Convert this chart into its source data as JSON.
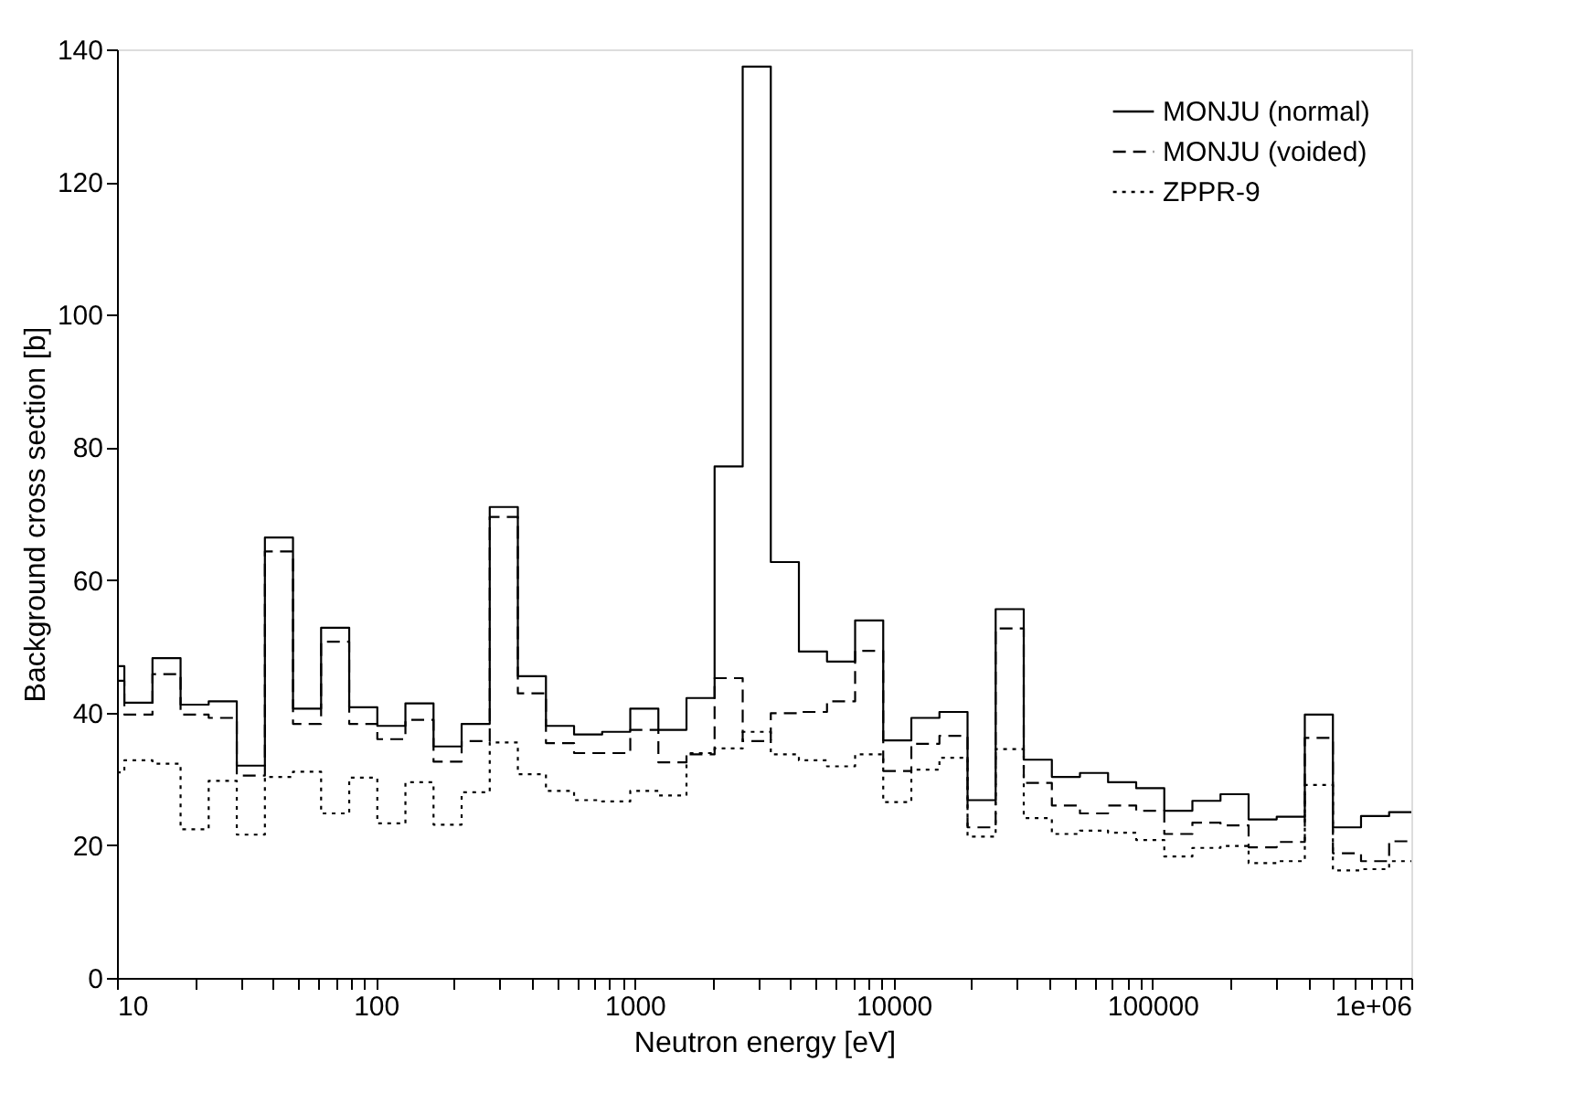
{
  "chart_data": {
    "type": "step",
    "xlabel": "Neutron energy [eV]",
    "ylabel": "Background cross section [b]",
    "x": [
      10,
      10.677,
      13.71,
      17.603,
      22.603,
      29.023,
      37.267,
      47.851,
      61.442,
      78.893,
      101.3,
      130.07,
      167.02,
      214.45,
      275.36,
      353.57,
      454.0,
      582.95,
      748.52,
      961.12,
      1234.1,
      1584.6,
      2034.7,
      2612.6,
      3354.6,
      4307.4,
      5530.8,
      7101.7,
      9118.8,
      11709,
      15034,
      19305,
      24788,
      31828,
      40868,
      52475,
      67379,
      86517,
      111090,
      142640,
      183160,
      235180,
      301970,
      387740,
      497870,
      639279,
      820850,
      1000000
    ],
    "series": [
      {
        "name": "MONJU (normal)",
        "color": "#000000",
        "line_style": "solid",
        "values": [
          47.0,
          41.5,
          48.2,
          41.2,
          41.7,
          32.0,
          66.4,
          40.6,
          52.8,
          40.8,
          38.0,
          41.4,
          34.9,
          38.3,
          71.0,
          45.5,
          38.0,
          36.7,
          37.1,
          40.6,
          37.4,
          42.2,
          77.1,
          137.4,
          62.7,
          49.2,
          47.7,
          53.9,
          35.8,
          39.2,
          40.1,
          26.8,
          55.6,
          32.9,
          30.3,
          30.9,
          29.5,
          28.6,
          25.2,
          26.7,
          27.7,
          23.9,
          24.3,
          39.7,
          22.7,
          24.4,
          25.0,
          25.0
        ]
      },
      {
        "name": "MONJU (voided)",
        "color": "#000000",
        "line_style": "dashed",
        "values": [
          44.8,
          39.7,
          45.8,
          39.7,
          39.2,
          30.5,
          64.3,
          38.3,
          50.7,
          38.3,
          36.0,
          38.9,
          32.6,
          35.7,
          69.5,
          42.9,
          35.4,
          33.9,
          33.9,
          37.4,
          32.5,
          33.7,
          45.2,
          35.7,
          39.9,
          40.1,
          41.7,
          49.3,
          31.2,
          35.3,
          36.5,
          22.7,
          52.7,
          29.4,
          26.0,
          24.8,
          26.0,
          25.2,
          21.7,
          23.4,
          23.0,
          19.7,
          20.5,
          36.2,
          18.8,
          17.6,
          20.6,
          20.6
        ]
      },
      {
        "name": "ZPPR-9",
        "color": "#000000",
        "line_style": "dotted",
        "values": [
          31.0,
          32.8,
          32.3,
          22.4,
          29.7,
          21.6,
          30.3,
          31.1,
          24.8,
          30.2,
          23.3,
          29.5,
          23.1,
          28.0,
          35.5,
          30.7,
          28.2,
          26.8,
          26.6,
          28.2,
          27.5,
          33.9,
          34.6,
          37.1,
          33.7,
          32.8,
          31.9,
          33.7,
          26.5,
          31.4,
          33.2,
          21.3,
          34.5,
          24.1,
          21.7,
          22.2,
          21.9,
          20.8,
          18.3,
          19.6,
          19.9,
          17.3,
          17.6,
          29.1,
          16.2,
          16.4,
          17.6,
          17.6
        ]
      }
    ],
    "log": "x",
    "xlim": [
      10,
      1000000
    ],
    "xticks": [
      10,
      {
        "value": 20,
        "label": null
      },
      {
        "value": 30,
        "label": null
      },
      {
        "value": 40,
        "label": null
      },
      {
        "value": 50,
        "label": null
      },
      {
        "value": 60,
        "label": null
      },
      {
        "value": 70,
        "label": null
      },
      {
        "value": 80,
        "label": null
      },
      {
        "value": 90,
        "label": null
      },
      100,
      {
        "value": 200,
        "label": null
      },
      {
        "value": 300,
        "label": null
      },
      {
        "value": 400,
        "label": null
      },
      {
        "value": 500,
        "label": null
      },
      {
        "value": 600,
        "label": null
      },
      {
        "value": 700,
        "label": null
      },
      {
        "value": 800,
        "label": null
      },
      {
        "value": 900,
        "label": null
      },
      1000,
      {
        "value": 2000,
        "label": null
      },
      {
        "value": 3000,
        "label": null
      },
      {
        "value": 4000,
        "label": null
      },
      {
        "value": 5000,
        "label": null
      },
      {
        "value": 6000,
        "label": null
      },
      {
        "value": 7000,
        "label": null
      },
      {
        "value": 8000,
        "label": null
      },
      {
        "value": 9000,
        "label": null
      },
      10000,
      {
        "value": 20000,
        "label": null
      },
      {
        "value": 30000,
        "label": null
      },
      {
        "value": 40000,
        "label": null
      },
      {
        "value": 50000,
        "label": null
      },
      {
        "value": 60000,
        "label": null
      },
      {
        "value": 70000,
        "label": null
      },
      {
        "value": 80000,
        "label": null
      },
      {
        "value": 90000,
        "label": null
      },
      100000,
      {
        "value": 200000,
        "label": null
      },
      {
        "value": 300000,
        "label": null
      },
      {
        "value": 400000,
        "label": null
      },
      {
        "value": 500000,
        "label": null
      },
      {
        "value": 600000,
        "label": null
      },
      {
        "value": 700000,
        "label": null
      },
      {
        "value": 800000,
        "label": null
      },
      {
        "value": 900000,
        "label": null
      },
      {
        "value": 1000000,
        "label": "1e+06"
      }
    ],
    "ylim": [
      0,
      140
    ],
    "yticks": [
      0,
      20,
      40,
      60,
      80,
      100,
      120,
      140
    ],
    "grid": false,
    "legend": "top right",
    "marker": "none"
  }
}
